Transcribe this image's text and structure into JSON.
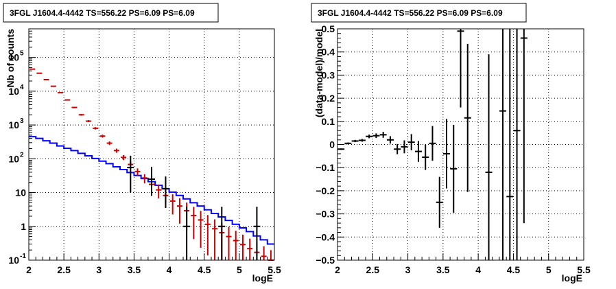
{
  "chart_data": [
    {
      "type": "line",
      "title": "3FGL J1604.4-4442 TS=556.22 PS=6.09 PS=6.09",
      "xlabel": "logE",
      "ylabel": "Nb of counts",
      "xlim": [
        2,
        5.5
      ],
      "ylim": [
        0.1,
        700000
      ],
      "yscale": "log",
      "grid": true,
      "xticks": [
        "2",
        "2.5",
        "3",
        "3.5",
        "4",
        "4.5",
        "5",
        "5.5"
      ],
      "yticks": [
        {
          "v": 0.1,
          "label": "10",
          "sup": "-1"
        },
        {
          "v": 1,
          "label": "1",
          "sup": ""
        },
        {
          "v": 10,
          "label": "10",
          "sup": ""
        },
        {
          "v": 100,
          "label": "10",
          "sup": "2"
        },
        {
          "v": 1000,
          "label": "10",
          "sup": "3"
        },
        {
          "v": 10000,
          "label": "10",
          "sup": "4"
        },
        {
          "v": 100000,
          "label": "10",
          "sup": "5"
        }
      ],
      "bin_edges": [
        2.0,
        2.1,
        2.2,
        2.3,
        2.4,
        2.5,
        2.6,
        2.7,
        2.8,
        2.9,
        3.0,
        3.1,
        3.2,
        3.3,
        3.4,
        3.5,
        3.6,
        3.7,
        3.8,
        3.9,
        4.0,
        4.1,
        4.2,
        4.3,
        4.4,
        4.5,
        4.6,
        4.7,
        4.8,
        4.9,
        5.0,
        5.1,
        5.2,
        5.3,
        5.4,
        5.5
      ],
      "series": [
        {
          "kind": "step",
          "color": "#0000ff",
          "values": [
            450,
            400,
            340,
            290,
            240,
            205,
            175,
            145,
            122,
            102,
            85,
            72,
            58,
            48,
            39,
            32,
            26,
            21,
            16.5,
            13,
            10.3,
            8.2,
            6.5,
            5,
            4,
            3.1,
            2.4,
            1.9,
            1.5,
            1.15,
            0.9,
            0.7,
            0.52,
            0.4,
            0.3
          ]
        },
        {
          "kind": "errorbars",
          "color": "#cc0000",
          "x": [
            2.05,
            2.15,
            2.25,
            2.35,
            2.45,
            2.55,
            2.65,
            2.75,
            2.85,
            2.95,
            3.05,
            3.15,
            3.25,
            3.35,
            3.45,
            3.55,
            3.65,
            3.75,
            3.85,
            3.95,
            4.05,
            4.15,
            4.25,
            4.35,
            4.45,
            4.55,
            4.65,
            4.75,
            4.85,
            4.95,
            5.05,
            5.15,
            5.25,
            5.35,
            5.45
          ],
          "y": [
            45000,
            34000,
            22000,
            14000,
            9000,
            5500,
            3300,
            2000,
            1300,
            800,
            470,
            290,
            175,
            110,
            68,
            42,
            27,
            17.5,
            12,
            8.2,
            5.6,
            4,
            2.9,
            2.1,
            1.55,
            1.15,
            0.85,
            0.65,
            0.5,
            0.38,
            0.29,
            0.22,
            0.17,
            0.13,
            0.1
          ],
          "err_rel": [
            0.02,
            0.02,
            0.02,
            0.025,
            0.03,
            0.04,
            0.05,
            0.06,
            0.07,
            0.08,
            0.1,
            0.12,
            0.14,
            0.17,
            0.2,
            0.24,
            0.3,
            0.36,
            0.44,
            0.55,
            0.6,
            0.7,
            0.75,
            0.8,
            0.85,
            0.88,
            0.9,
            0.92,
            0.94,
            0.95,
            0.96,
            0.97,
            0.98,
            0.98,
            0.98
          ]
        },
        {
          "kind": "errorbars",
          "color": "#000000",
          "x": [
            3.45,
            3.75,
            3.95,
            4.25,
            4.75,
            5.25
          ],
          "y": [
            55,
            25,
            13,
            1,
            1,
            1
          ],
          "err_lo": [
            45,
            17,
            9.5,
            0.9,
            0.9,
            0.9
          ],
          "err_hi": [
            68,
            33,
            17,
            2.8,
            2.8,
            2.8
          ]
        }
      ]
    },
    {
      "type": "scatter",
      "title": "3FGL J1604.4-4442 TS=556.22 PS=6.09 PS=6.09",
      "xlabel": "logE",
      "ylabel": "(data-model)/model",
      "xlim": [
        2,
        5.5
      ],
      "ylim": [
        -0.5,
        0.5
      ],
      "grid": true,
      "xticks": [
        "2",
        "2.5",
        "3",
        "3.5",
        "4",
        "4.5",
        "5",
        "5.5"
      ],
      "yticks": [
        "-0.5",
        "-0.4",
        "-0.3",
        "-0.2",
        "-0.1",
        "0",
        "0.1",
        "0.2",
        "0.3",
        "0.4",
        "0.5"
      ],
      "points": [
        {
          "x": 2.05,
          "y": -0.02,
          "e": 0.003
        },
        {
          "x": 2.15,
          "y": 0.005,
          "e": 0.004
        },
        {
          "x": 2.25,
          "y": 0.015,
          "e": 0.005
        },
        {
          "x": 2.35,
          "y": 0.018,
          "e": 0.006
        },
        {
          "x": 2.45,
          "y": 0.035,
          "e": 0.008
        },
        {
          "x": 2.55,
          "y": 0.038,
          "e": 0.01
        },
        {
          "x": 2.65,
          "y": 0.042,
          "e": 0.013
        },
        {
          "x": 2.75,
          "y": 0.02,
          "e": 0.016
        },
        {
          "x": 2.85,
          "y": -0.02,
          "e": 0.022
        },
        {
          "x": 2.95,
          "y": -0.01,
          "e": 0.028
        },
        {
          "x": 3.05,
          "y": 0.01,
          "e": 0.035
        },
        {
          "x": 3.15,
          "y": -0.03,
          "e": 0.045
        },
        {
          "x": 3.25,
          "y": -0.055,
          "e": 0.055
        },
        {
          "x": 3.35,
          "y": 0.005,
          "e": 0.075
        },
        {
          "x": 3.45,
          "y": -0.25,
          "e": 0.11
        },
        {
          "x": 3.55,
          "y": -0.04,
          "e": 0.15
        },
        {
          "x": 3.65,
          "y": -0.105,
          "e": 0.19
        },
        {
          "x": 3.75,
          "y": 0.49,
          "e": 0.33
        },
        {
          "x": 3.85,
          "y": 0.115,
          "e": 0.32
        },
        {
          "x": 4.15,
          "y": -0.12,
          "e": 0.51
        },
        {
          "x": 4.35,
          "y": 0.145,
          "e": 0.8
        },
        {
          "x": 4.45,
          "y": -0.225,
          "e": 0.8
        },
        {
          "x": 4.55,
          "y": 0.06,
          "e": 0.8
        },
        {
          "x": 4.65,
          "y": 0.46,
          "e": 0.8
        }
      ]
    }
  ]
}
